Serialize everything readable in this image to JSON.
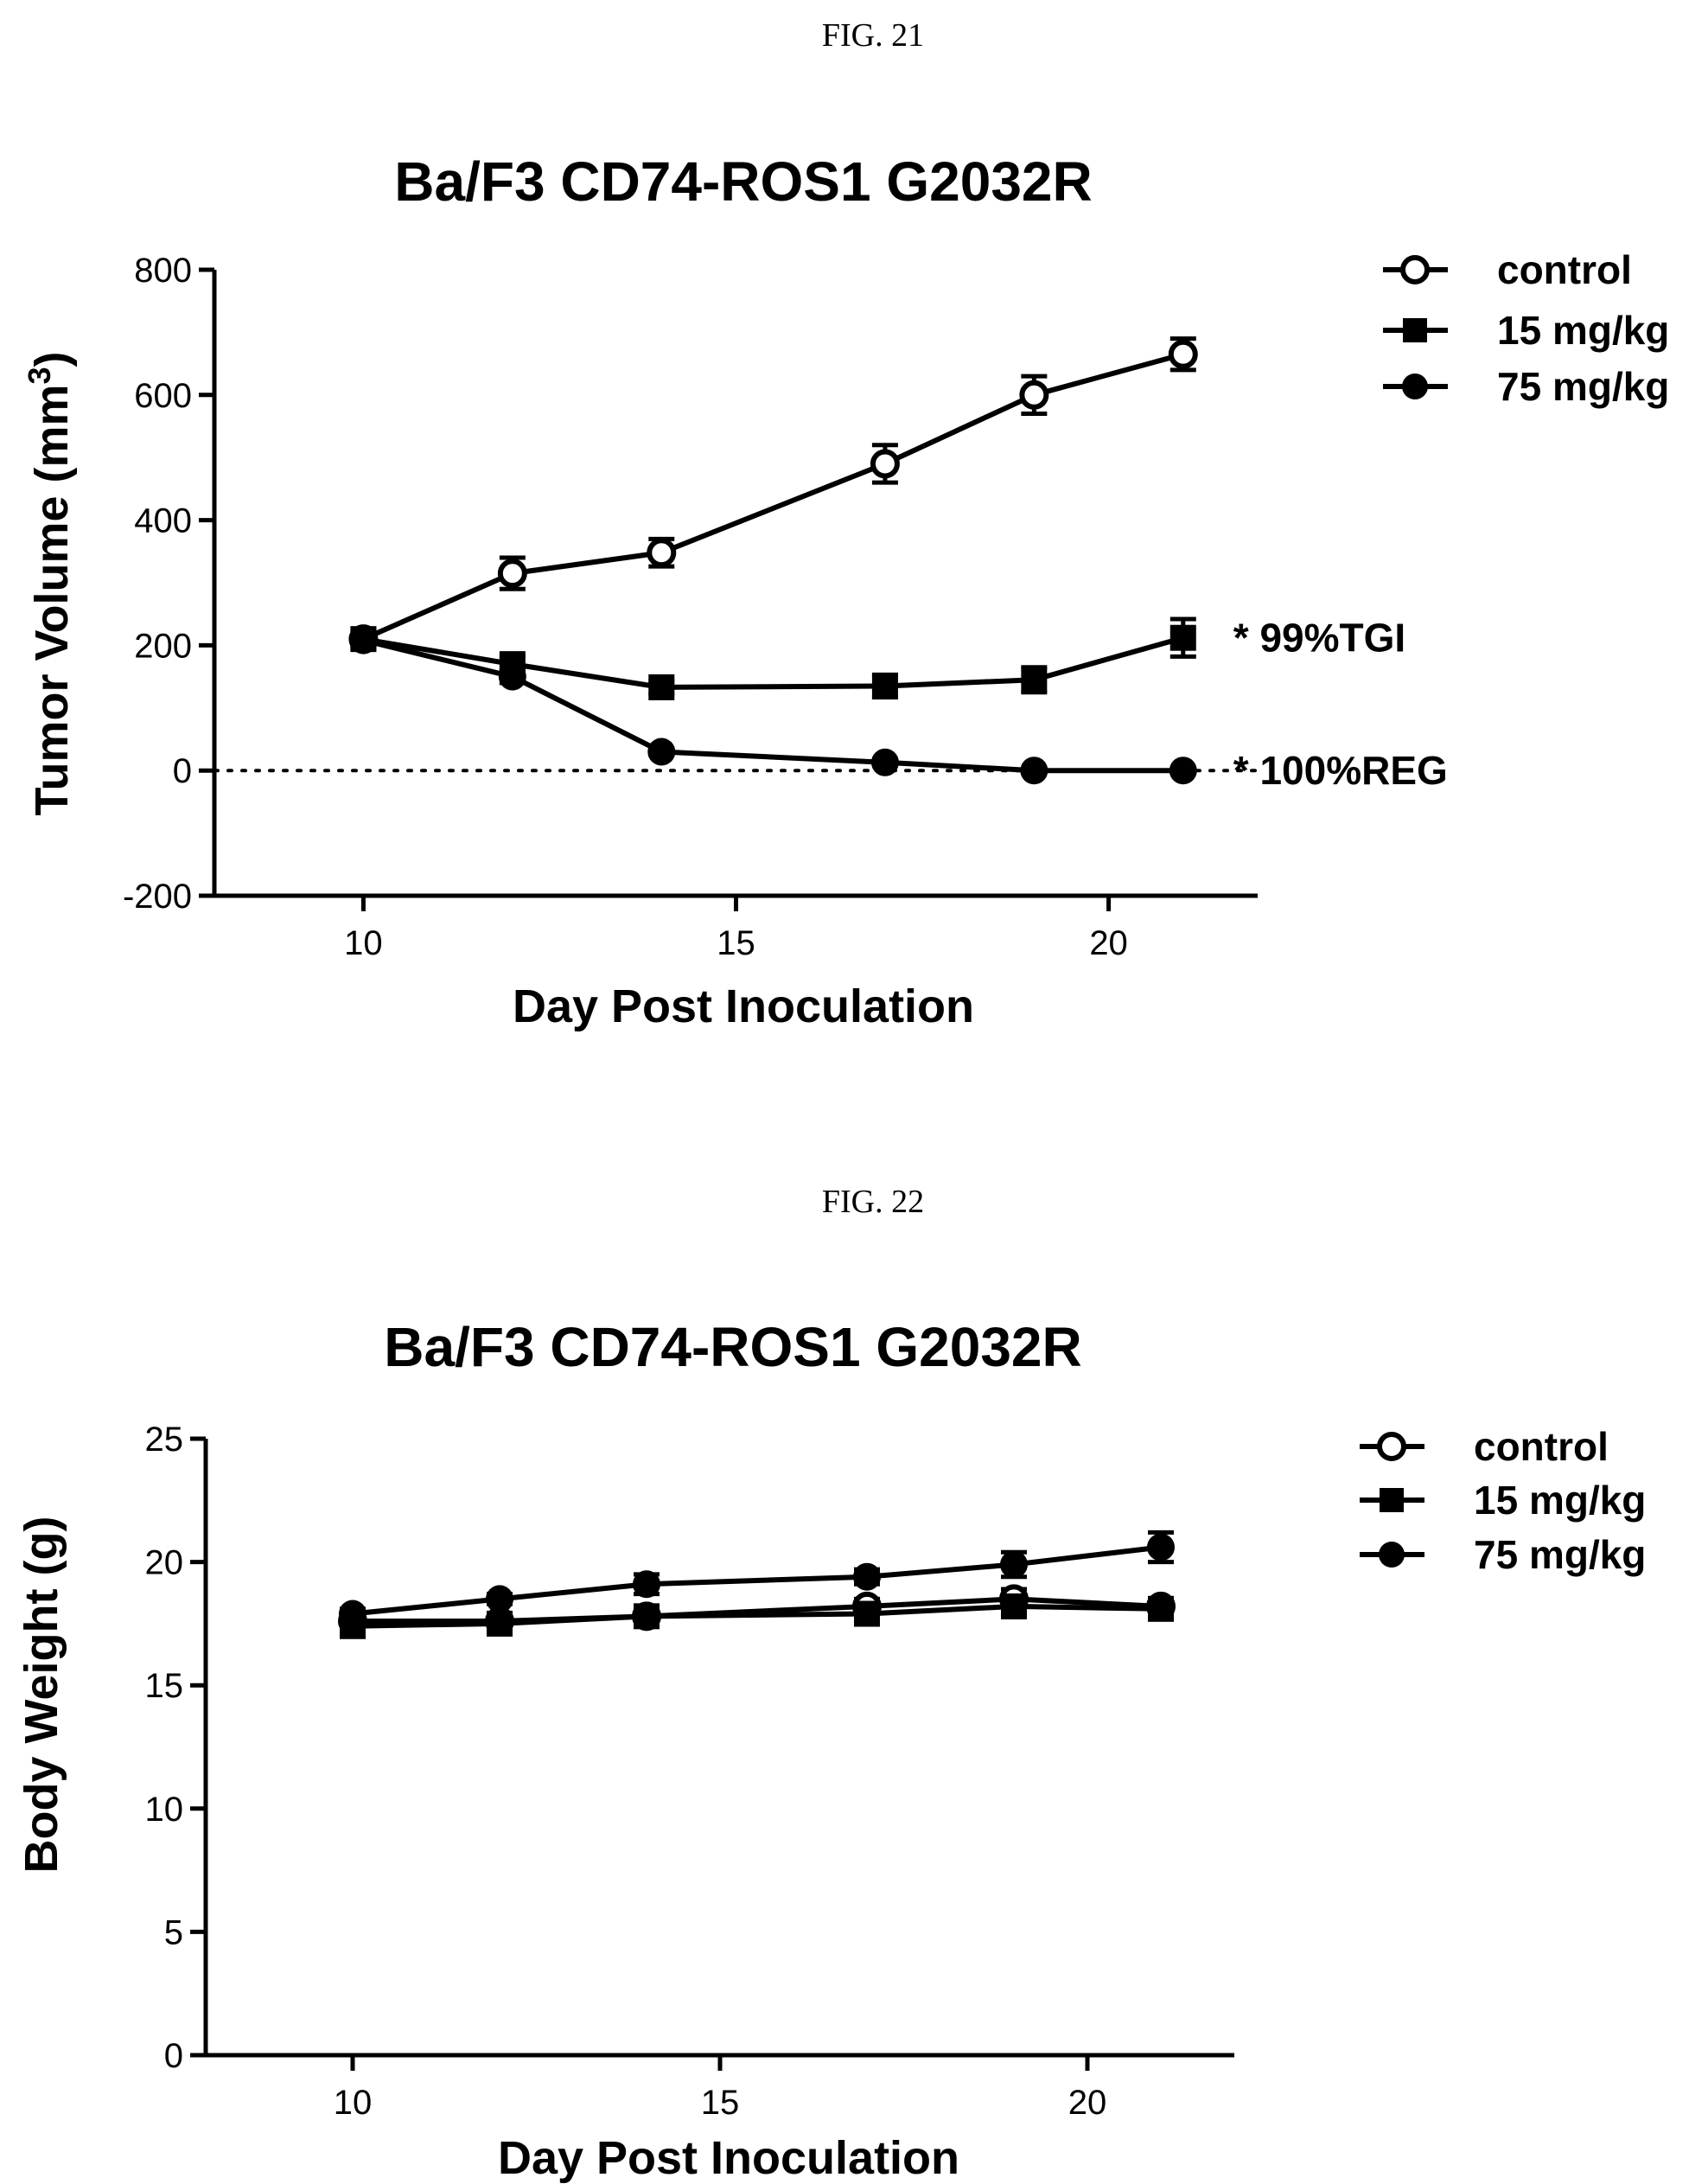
{
  "figures": [
    {
      "caption": "FIG. 21",
      "legend": [
        "control",
        "15 mg/kg",
        "75 mg/kg"
      ]
    },
    {
      "caption": "FIG. 22",
      "legend": [
        "control",
        "15 mg/kg",
        "75 mg/kg"
      ]
    }
  ],
  "chart_data": [
    {
      "type": "line",
      "title": "Ba/F3 CD74-ROS1 G2032R",
      "xlabel": "Day Post Inoculation",
      "ylabel": "Tumor Volume (mm",
      "ylabel_superscript": "3",
      "ylabel_suffix": ")",
      "xlim": [
        8,
        22
      ],
      "ylim": [
        -200,
        800
      ],
      "xticks": [
        10,
        15,
        20
      ],
      "yticks": [
        -200,
        0,
        200,
        400,
        600,
        800
      ],
      "x": [
        10,
        12,
        14,
        17,
        19,
        21
      ],
      "grid": false,
      "legend_position": "top-right",
      "reference_line": {
        "y": 0,
        "style": "dotted"
      },
      "series": [
        {
          "name": "control",
          "marker": "open-circle",
          "values": [
            210,
            315,
            348,
            490,
            600,
            665
          ],
          "errors": [
            15,
            25,
            22,
            30,
            30,
            25
          ]
        },
        {
          "name": "15 mg/kg",
          "marker": "square",
          "values": [
            210,
            170,
            133,
            135,
            145,
            212
          ],
          "errors": [
            10,
            12,
            10,
            18,
            20,
            30
          ]
        },
        {
          "name": "75 mg/kg",
          "marker": "filled-circle",
          "values": [
            208,
            150,
            30,
            13,
            0,
            0
          ],
          "errors": [
            8,
            10,
            5,
            4,
            2,
            2
          ]
        }
      ],
      "annotations": [
        {
          "text": "* 99%TGI",
          "series": "15 mg/kg"
        },
        {
          "text": "* 100%REG",
          "series": "75 mg/kg"
        }
      ]
    },
    {
      "type": "line",
      "title": "Ba/F3 CD74-ROS1 G2032R",
      "xlabel": "Day Post Inoculation",
      "ylabel": "Body Weight (g)",
      "xlim": [
        8,
        22
      ],
      "ylim": [
        0,
        25
      ],
      "xticks": [
        10,
        15,
        20
      ],
      "yticks": [
        0,
        5,
        10,
        15,
        20,
        25
      ],
      "x": [
        10,
        12,
        14,
        17,
        19,
        21
      ],
      "grid": false,
      "legend_position": "top-right",
      "series": [
        {
          "name": "control",
          "marker": "open-circle",
          "values": [
            17.6,
            17.6,
            17.8,
            18.2,
            18.5,
            18.2
          ],
          "errors": [
            0.2,
            0.2,
            0.2,
            0.3,
            0.4,
            0.3
          ]
        },
        {
          "name": "15 mg/kg",
          "marker": "square",
          "values": [
            17.4,
            17.5,
            17.8,
            17.9,
            18.2,
            18.1
          ],
          "errors": [
            0.2,
            0.2,
            0.3,
            0.3,
            0.3,
            0.3
          ]
        },
        {
          "name": "75 mg/kg",
          "marker": "filled-circle",
          "values": [
            17.9,
            18.5,
            19.1,
            19.4,
            19.9,
            20.6
          ],
          "errors": [
            0.2,
            0.2,
            0.4,
            0.3,
            0.5,
            0.6
          ]
        }
      ]
    }
  ]
}
